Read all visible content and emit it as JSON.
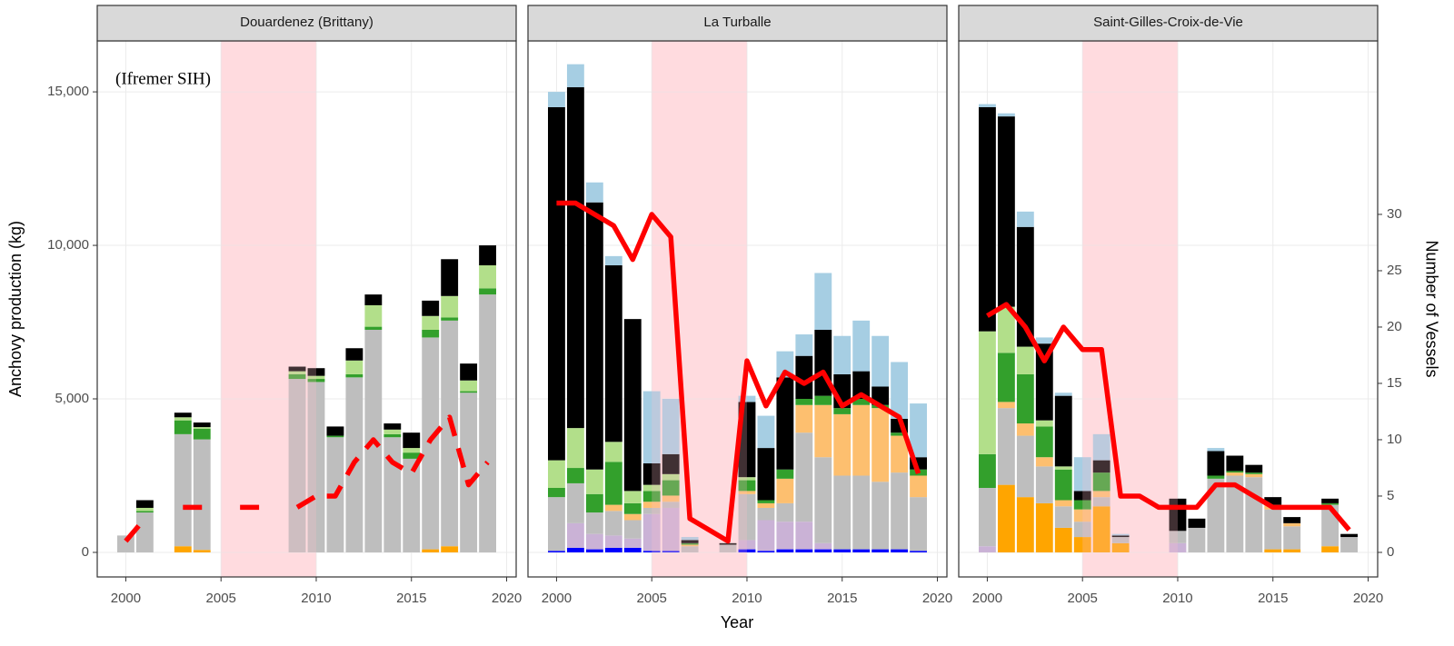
{
  "axes": {
    "xlabel": "Year",
    "ylabel": "Anchovy production (kg)",
    "y2label": "Number of Vessels",
    "xlim": [
      1998.5,
      2020.5
    ],
    "xticks": [
      2000,
      2005,
      2010,
      2015,
      2020
    ],
    "ylim": [
      -800,
      16660
    ],
    "yticks": [
      0,
      {
        "value": 5000,
        "label": "5,000"
      },
      {
        "value": 10000,
        "label": "10,000"
      },
      {
        "value": 15000,
        "label": "15,000"
      }
    ],
    "y2lim": [
      -2.18,
      45.4
    ],
    "y2ticks": [
      0,
      5,
      10,
      15,
      20,
      25,
      30
    ],
    "grid": true
  },
  "chart_data": [
    {
      "type": "bar",
      "stacked": true,
      "title": "Douardenez (Brittany)",
      "annotation": "(Ifremer SIH)",
      "highlight": [
        2005,
        2010
      ],
      "linestyle": "dashed",
      "x": [
        2000,
        2001,
        2002,
        2003,
        2004,
        2005,
        2006,
        2007,
        2008,
        2009,
        2010,
        2011,
        2012,
        2013,
        2014,
        2015,
        2016,
        2017,
        2018,
        2019
      ],
      "series": [
        {
          "color": "#ffa500",
          "values": [
            0,
            0,
            0,
            200,
            80,
            0,
            0,
            0,
            0,
            0,
            0,
            0,
            0,
            0,
            0,
            0,
            100,
            200,
            0,
            0
          ]
        },
        {
          "color": "#bebebe",
          "values": [
            550,
            1300,
            0,
            3650,
            3600,
            0,
            0,
            0,
            0,
            5650,
            5550,
            3750,
            5700,
            7250,
            3750,
            3050,
            6900,
            7350,
            5200,
            8400
          ]
        },
        {
          "color": "#33a02c",
          "values": [
            0,
            50,
            0,
            450,
            350,
            0,
            0,
            0,
            0,
            150,
            100,
            50,
            100,
            100,
            100,
            200,
            250,
            100,
            50,
            200
          ]
        },
        {
          "color": "#b2df8a",
          "values": [
            0,
            100,
            0,
            100,
            50,
            0,
            0,
            0,
            0,
            100,
            100,
            0,
            450,
            700,
            150,
            150,
            450,
            700,
            350,
            750
          ]
        },
        {
          "color": "#000000",
          "values": [
            0,
            250,
            0,
            150,
            150,
            0,
            0,
            0,
            0,
            150,
            250,
            300,
            400,
            350,
            200,
            500,
            500,
            1200,
            550,
            650
          ]
        },
        {
          "color": "#ff0000",
          "axis": "y2",
          "values": [
            1,
            3,
            null,
            4,
            4,
            null,
            4,
            4,
            null,
            4,
            5,
            5,
            8,
            10,
            8,
            7,
            10,
            12,
            6,
            8
          ]
        }
      ]
    },
    {
      "type": "bar",
      "stacked": true,
      "title": "La Turballe",
      "highlight": [
        2005,
        2010
      ],
      "x": [
        2000,
        2001,
        2002,
        2003,
        2004,
        2005,
        2006,
        2007,
        2008,
        2009,
        2010,
        2011,
        2012,
        2013,
        2014,
        2015,
        2016,
        2017,
        2018,
        2019
      ],
      "series": [
        {
          "color": "#0000ff",
          "values": [
            50,
            150,
            100,
            150,
            150,
            50,
            50,
            0,
            0,
            0,
            100,
            50,
            100,
            100,
            100,
            100,
            100,
            100,
            100,
            50
          ]
        },
        {
          "color": "#cab2d6",
          "values": [
            0,
            800,
            500,
            400,
            300,
            1200,
            1400,
            0,
            0,
            0,
            300,
            1000,
            900,
            900,
            200,
            0,
            0,
            0,
            0,
            0
          ]
        },
        {
          "color": "#bebebe",
          "values": [
            1750,
            1300,
            700,
            800,
            600,
            200,
            200,
            200,
            0,
            250,
            1500,
            400,
            600,
            2900,
            2800,
            2400,
            2400,
            2200,
            2500,
            1750
          ]
        },
        {
          "color": "#fdbf6f",
          "values": [
            0,
            0,
            0,
            200,
            200,
            200,
            200,
            50,
            0,
            0,
            100,
            150,
            800,
            900,
            1700,
            2000,
            2300,
            2400,
            1200,
            700
          ]
        },
        {
          "color": "#33a02c",
          "values": [
            300,
            500,
            600,
            1400,
            350,
            350,
            500,
            50,
            0,
            0,
            350,
            100,
            300,
            200,
            300,
            200,
            200,
            100,
            100,
            200
          ]
        },
        {
          "color": "#b2df8a",
          "values": [
            900,
            1300,
            800,
            650,
            400,
            200,
            200,
            0,
            0,
            0,
            100,
            0,
            0,
            0,
            0,
            0,
            0,
            0,
            0,
            0
          ]
        },
        {
          "color": "#000000",
          "values": [
            11500,
            11100,
            8700,
            5750,
            5600,
            700,
            650,
            100,
            0,
            50,
            2450,
            1700,
            3000,
            1400,
            2150,
            1100,
            900,
            600,
            450,
            400
          ]
        },
        {
          "color": "#a6cee3",
          "values": [
            500,
            750,
            650,
            300,
            0,
            2350,
            1800,
            100,
            0,
            0,
            200,
            1050,
            850,
            700,
            1850,
            1250,
            1650,
            1650,
            1850,
            1750
          ]
        },
        {
          "color": "#ff0000",
          "axis": "y2",
          "values": [
            31,
            31,
            30,
            29,
            26,
            30,
            28,
            3,
            2,
            1,
            17,
            13,
            16,
            15,
            16,
            13,
            14,
            13,
            12,
            7
          ]
        }
      ]
    },
    {
      "type": "bar",
      "stacked": true,
      "title": "Saint-Gilles-Croix-de-Vie",
      "highlight": [
        2005,
        2010
      ],
      "x": [
        2000,
        2001,
        2002,
        2003,
        2004,
        2005,
        2006,
        2007,
        2008,
        2009,
        2010,
        2011,
        2012,
        2013,
        2014,
        2015,
        2016,
        2017,
        2018,
        2019
      ],
      "series": [
        {
          "color": "#ffa500",
          "values": [
            0,
            2200,
            1800,
            1600,
            800,
            500,
            1500,
            300,
            0,
            0,
            0,
            0,
            0,
            0,
            0,
            100,
            100,
            0,
            200,
            0
          ]
        },
        {
          "color": "#cab2d6",
          "values": [
            200,
            0,
            0,
            0,
            0,
            0,
            0,
            0,
            0,
            0,
            300,
            0,
            0,
            0,
            0,
            0,
            0,
            0,
            0,
            0
          ]
        },
        {
          "color": "#bebebe",
          "values": [
            1900,
            2500,
            2000,
            1200,
            700,
            500,
            300,
            200,
            0,
            0,
            400,
            800,
            2400,
            2500,
            2450,
            1300,
            750,
            0,
            1350,
            500
          ]
        },
        {
          "color": "#fdbf6f",
          "values": [
            0,
            200,
            400,
            300,
            200,
            400,
            200,
            0,
            0,
            0,
            0,
            0,
            0,
            100,
            100,
            150,
            100,
            0,
            0,
            0
          ]
        },
        {
          "color": "#33a02c",
          "values": [
            1100,
            1600,
            1600,
            1000,
            1000,
            300,
            600,
            0,
            0,
            0,
            0,
            0,
            100,
            50,
            50,
            0,
            0,
            0,
            50,
            0
          ]
        },
        {
          "color": "#b2df8a",
          "values": [
            4000,
            1500,
            900,
            200,
            100,
            0,
            0,
            0,
            0,
            0,
            0,
            0,
            0,
            0,
            0,
            0,
            0,
            0,
            0,
            0
          ]
        },
        {
          "color": "#000000",
          "values": [
            7300,
            6200,
            3900,
            2500,
            2300,
            300,
            400,
            50,
            0,
            0,
            1050,
            300,
            800,
            500,
            250,
            250,
            200,
            0,
            150,
            100
          ]
        },
        {
          "color": "#a6cee3",
          "values": [
            100,
            100,
            500,
            200,
            100,
            1100,
            850,
            50,
            0,
            0,
            0,
            0,
            100,
            0,
            0,
            0,
            0,
            0,
            0,
            0
          ]
        },
        {
          "color": "#ff0000",
          "axis": "y2",
          "values": [
            21,
            22,
            20,
            17,
            20,
            18,
            18,
            5,
            5,
            4,
            4,
            4,
            6,
            6,
            5,
            4,
            4,
            4,
            4,
            2
          ]
        }
      ]
    }
  ]
}
